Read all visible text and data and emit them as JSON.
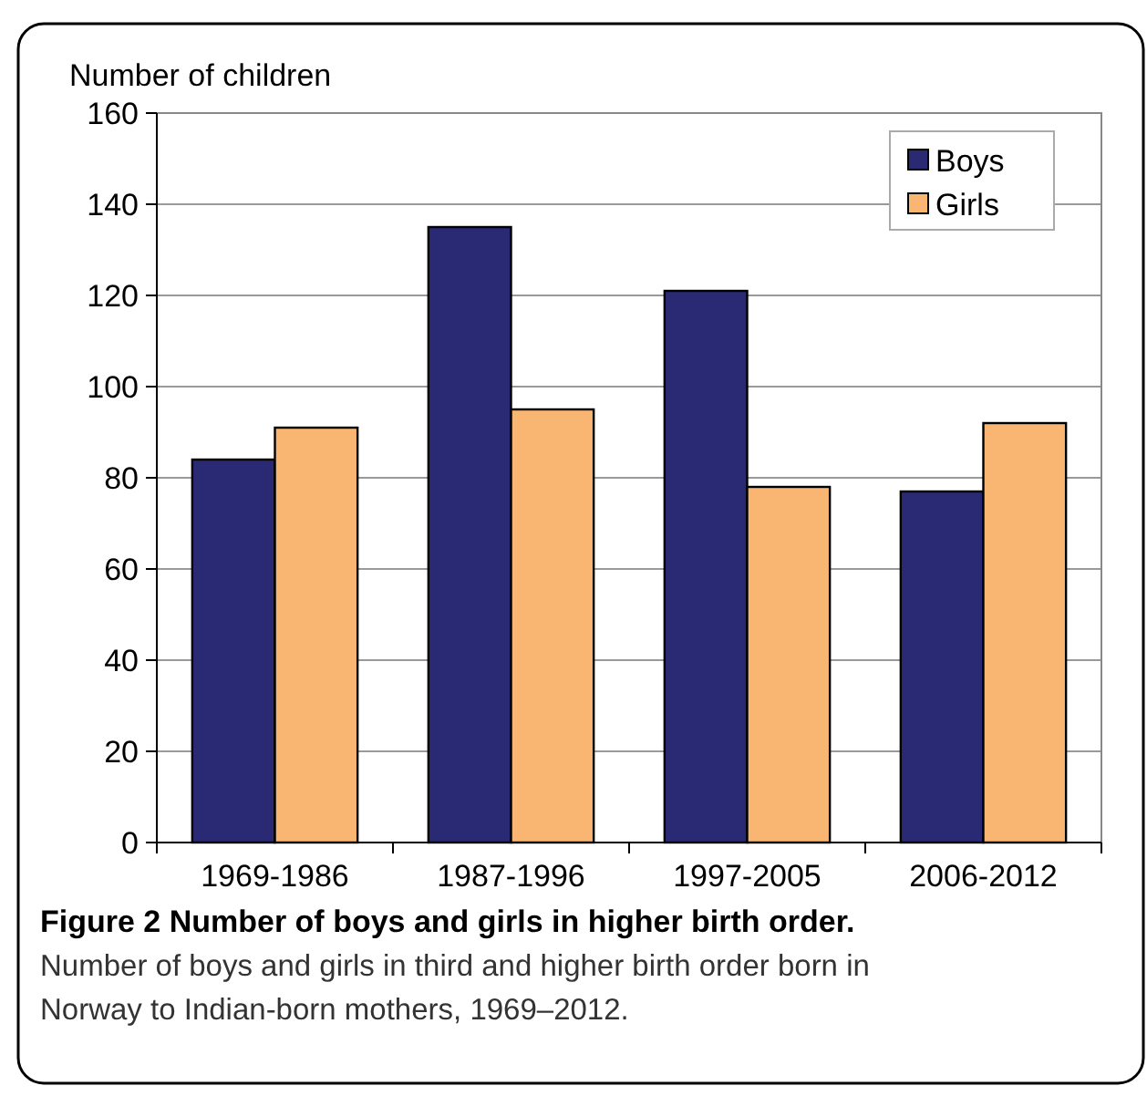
{
  "chart_data": {
    "type": "bar",
    "ylabel": "Number of children",
    "categories": [
      "1969-1986",
      "1987-1996",
      "1997-2005",
      "2006-2012"
    ],
    "series": [
      {
        "name": "Boys",
        "color": "#292a73",
        "values": [
          84,
          135,
          121,
          77
        ]
      },
      {
        "name": "Girls",
        "color": "#f9b572",
        "values": [
          91,
          95,
          78,
          92
        ]
      }
    ],
    "ylim": [
      0,
      160
    ],
    "yticks": [
      0,
      20,
      40,
      60,
      80,
      100,
      120,
      140,
      160
    ],
    "grid": "y",
    "legend": "top right",
    "title": "Figure 2 Number of boys and girls in higher birth order.",
    "subtitle": "Number of boys and girls in third and higher birth order born in Norway to Indian-born mothers, 1969–2012."
  }
}
